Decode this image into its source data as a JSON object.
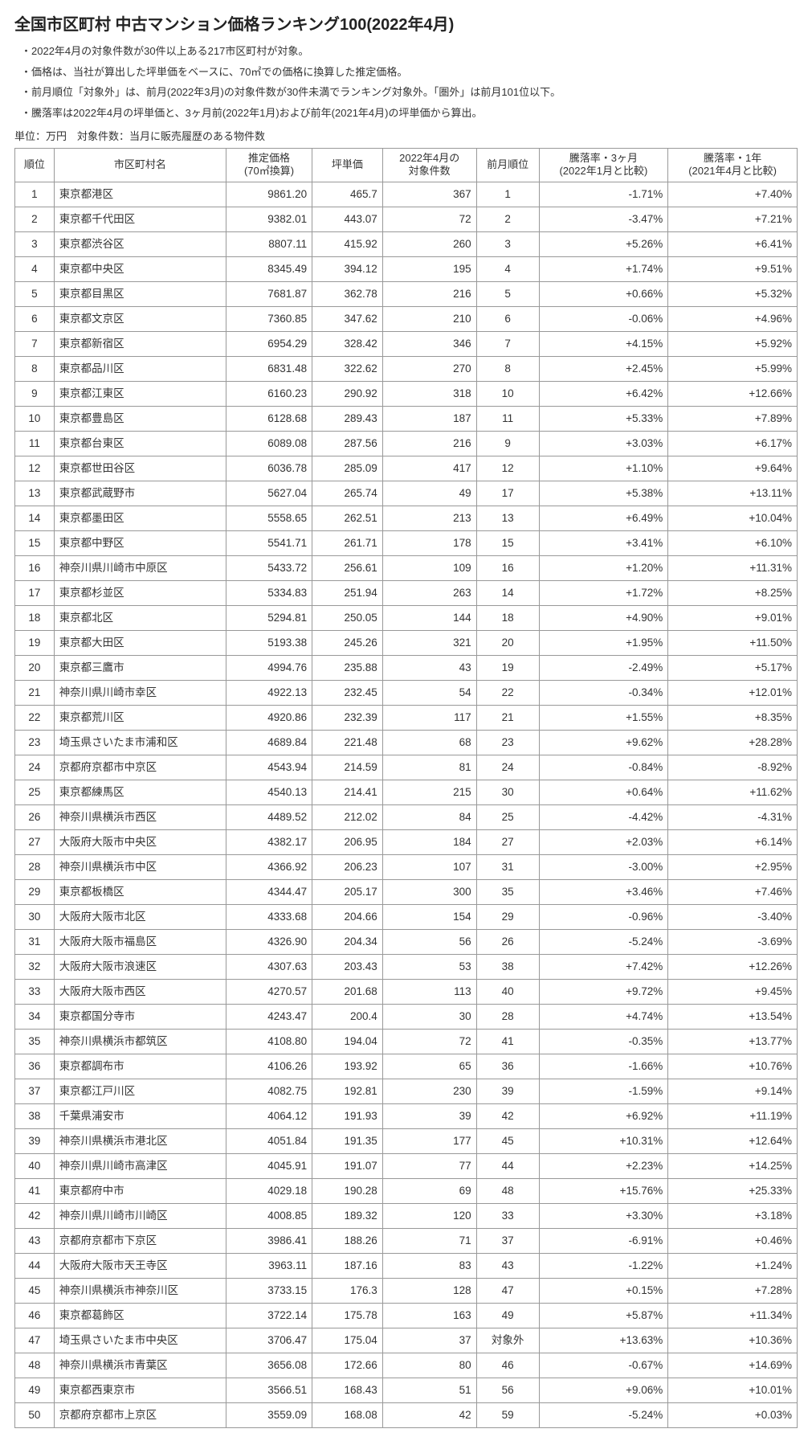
{
  "title": "全国市区町村 中古マンション価格ランキング100(2022年4月)",
  "notes": [
    "2022年4月の対象件数が30件以上ある217市区町村が対象。",
    "価格は、当社が算出した坪単価をベースに、70㎡での価格に換算した推定価格。",
    "前月順位「対象外」は、前月(2022年3月)の対象件数が30件未満でランキング対象外。「圏外」は前月101位以下。",
    "騰落率は2022年4月の坪単価と、3ヶ月前(2022年1月)および前年(2021年4月)の坪単価から算出。"
  ],
  "unit_line": "単位：万円　対象件数：当月に販売履歴のある物件数",
  "columns": [
    "順位",
    "市区町村名",
    "推定価格\n(70㎡換算)",
    "坪単価",
    "2022年4月の\n対象件数",
    "前月順位",
    "騰落率・3ヶ月\n(2022年1月と比較)",
    "騰落率・1年\n(2021年4月と比較)"
  ],
  "rows": [
    {
      "rank": 1,
      "name": "東京都港区",
      "price": "9861.20",
      "tsubo": "465.7",
      "count": 367,
      "prev": "1",
      "ch3": "-1.71%",
      "ch12": "+7.40%"
    },
    {
      "rank": 2,
      "name": "東京都千代田区",
      "price": "9382.01",
      "tsubo": "443.07",
      "count": 72,
      "prev": "2",
      "ch3": "-3.47%",
      "ch12": "+7.21%"
    },
    {
      "rank": 3,
      "name": "東京都渋谷区",
      "price": "8807.11",
      "tsubo": "415.92",
      "count": 260,
      "prev": "3",
      "ch3": "+5.26%",
      "ch12": "+6.41%"
    },
    {
      "rank": 4,
      "name": "東京都中央区",
      "price": "8345.49",
      "tsubo": "394.12",
      "count": 195,
      "prev": "4",
      "ch3": "+1.74%",
      "ch12": "+9.51%"
    },
    {
      "rank": 5,
      "name": "東京都目黒区",
      "price": "7681.87",
      "tsubo": "362.78",
      "count": 216,
      "prev": "5",
      "ch3": "+0.66%",
      "ch12": "+5.32%"
    },
    {
      "rank": 6,
      "name": "東京都文京区",
      "price": "7360.85",
      "tsubo": "347.62",
      "count": 210,
      "prev": "6",
      "ch3": "-0.06%",
      "ch12": "+4.96%"
    },
    {
      "rank": 7,
      "name": "東京都新宿区",
      "price": "6954.29",
      "tsubo": "328.42",
      "count": 346,
      "prev": "7",
      "ch3": "+4.15%",
      "ch12": "+5.92%"
    },
    {
      "rank": 8,
      "name": "東京都品川区",
      "price": "6831.48",
      "tsubo": "322.62",
      "count": 270,
      "prev": "8",
      "ch3": "+2.45%",
      "ch12": "+5.99%"
    },
    {
      "rank": 9,
      "name": "東京都江東区",
      "price": "6160.23",
      "tsubo": "290.92",
      "count": 318,
      "prev": "10",
      "ch3": "+6.42%",
      "ch12": "+12.66%"
    },
    {
      "rank": 10,
      "name": "東京都豊島区",
      "price": "6128.68",
      "tsubo": "289.43",
      "count": 187,
      "prev": "11",
      "ch3": "+5.33%",
      "ch12": "+7.89%"
    },
    {
      "rank": 11,
      "name": "東京都台東区",
      "price": "6089.08",
      "tsubo": "287.56",
      "count": 216,
      "prev": "9",
      "ch3": "+3.03%",
      "ch12": "+6.17%"
    },
    {
      "rank": 12,
      "name": "東京都世田谷区",
      "price": "6036.78",
      "tsubo": "285.09",
      "count": 417,
      "prev": "12",
      "ch3": "+1.10%",
      "ch12": "+9.64%"
    },
    {
      "rank": 13,
      "name": "東京都武蔵野市",
      "price": "5627.04",
      "tsubo": "265.74",
      "count": 49,
      "prev": "17",
      "ch3": "+5.38%",
      "ch12": "+13.11%"
    },
    {
      "rank": 14,
      "name": "東京都墨田区",
      "price": "5558.65",
      "tsubo": "262.51",
      "count": 213,
      "prev": "13",
      "ch3": "+6.49%",
      "ch12": "+10.04%"
    },
    {
      "rank": 15,
      "name": "東京都中野区",
      "price": "5541.71",
      "tsubo": "261.71",
      "count": 178,
      "prev": "15",
      "ch3": "+3.41%",
      "ch12": "+6.10%"
    },
    {
      "rank": 16,
      "name": "神奈川県川崎市中原区",
      "price": "5433.72",
      "tsubo": "256.61",
      "count": 109,
      "prev": "16",
      "ch3": "+1.20%",
      "ch12": "+11.31%"
    },
    {
      "rank": 17,
      "name": "東京都杉並区",
      "price": "5334.83",
      "tsubo": "251.94",
      "count": 263,
      "prev": "14",
      "ch3": "+1.72%",
      "ch12": "+8.25%"
    },
    {
      "rank": 18,
      "name": "東京都北区",
      "price": "5294.81",
      "tsubo": "250.05",
      "count": 144,
      "prev": "18",
      "ch3": "+4.90%",
      "ch12": "+9.01%"
    },
    {
      "rank": 19,
      "name": "東京都大田区",
      "price": "5193.38",
      "tsubo": "245.26",
      "count": 321,
      "prev": "20",
      "ch3": "+1.95%",
      "ch12": "+11.50%"
    },
    {
      "rank": 20,
      "name": "東京都三鷹市",
      "price": "4994.76",
      "tsubo": "235.88",
      "count": 43,
      "prev": "19",
      "ch3": "-2.49%",
      "ch12": "+5.17%"
    },
    {
      "rank": 21,
      "name": "神奈川県川崎市幸区",
      "price": "4922.13",
      "tsubo": "232.45",
      "count": 54,
      "prev": "22",
      "ch3": "-0.34%",
      "ch12": "+12.01%"
    },
    {
      "rank": 22,
      "name": "東京都荒川区",
      "price": "4920.86",
      "tsubo": "232.39",
      "count": 117,
      "prev": "21",
      "ch3": "+1.55%",
      "ch12": "+8.35%"
    },
    {
      "rank": 23,
      "name": "埼玉県さいたま市浦和区",
      "price": "4689.84",
      "tsubo": "221.48",
      "count": 68,
      "prev": "23",
      "ch3": "+9.62%",
      "ch12": "+28.28%"
    },
    {
      "rank": 24,
      "name": "京都府京都市中京区",
      "price": "4543.94",
      "tsubo": "214.59",
      "count": 81,
      "prev": "24",
      "ch3": "-0.84%",
      "ch12": "-8.92%"
    },
    {
      "rank": 25,
      "name": "東京都練馬区",
      "price": "4540.13",
      "tsubo": "214.41",
      "count": 215,
      "prev": "30",
      "ch3": "+0.64%",
      "ch12": "+11.62%"
    },
    {
      "rank": 26,
      "name": "神奈川県横浜市西区",
      "price": "4489.52",
      "tsubo": "212.02",
      "count": 84,
      "prev": "25",
      "ch3": "-4.42%",
      "ch12": "-4.31%"
    },
    {
      "rank": 27,
      "name": "大阪府大阪市中央区",
      "price": "4382.17",
      "tsubo": "206.95",
      "count": 184,
      "prev": "27",
      "ch3": "+2.03%",
      "ch12": "+6.14%"
    },
    {
      "rank": 28,
      "name": "神奈川県横浜市中区",
      "price": "4366.92",
      "tsubo": "206.23",
      "count": 107,
      "prev": "31",
      "ch3": "-3.00%",
      "ch12": "+2.95%"
    },
    {
      "rank": 29,
      "name": "東京都板橋区",
      "price": "4344.47",
      "tsubo": "205.17",
      "count": 300,
      "prev": "35",
      "ch3": "+3.46%",
      "ch12": "+7.46%"
    },
    {
      "rank": 30,
      "name": "大阪府大阪市北区",
      "price": "4333.68",
      "tsubo": "204.66",
      "count": 154,
      "prev": "29",
      "ch3": "-0.96%",
      "ch12": "-3.40%"
    },
    {
      "rank": 31,
      "name": "大阪府大阪市福島区",
      "price": "4326.90",
      "tsubo": "204.34",
      "count": 56,
      "prev": "26",
      "ch3": "-5.24%",
      "ch12": "-3.69%"
    },
    {
      "rank": 32,
      "name": "大阪府大阪市浪速区",
      "price": "4307.63",
      "tsubo": "203.43",
      "count": 53,
      "prev": "38",
      "ch3": "+7.42%",
      "ch12": "+12.26%"
    },
    {
      "rank": 33,
      "name": "大阪府大阪市西区",
      "price": "4270.57",
      "tsubo": "201.68",
      "count": 113,
      "prev": "40",
      "ch3": "+9.72%",
      "ch12": "+9.45%"
    },
    {
      "rank": 34,
      "name": "東京都国分寺市",
      "price": "4243.47",
      "tsubo": "200.4",
      "count": 30,
      "prev": "28",
      "ch3": "+4.74%",
      "ch12": "+13.54%"
    },
    {
      "rank": 35,
      "name": "神奈川県横浜市都筑区",
      "price": "4108.80",
      "tsubo": "194.04",
      "count": 72,
      "prev": "41",
      "ch3": "-0.35%",
      "ch12": "+13.77%"
    },
    {
      "rank": 36,
      "name": "東京都調布市",
      "price": "4106.26",
      "tsubo": "193.92",
      "count": 65,
      "prev": "36",
      "ch3": "-1.66%",
      "ch12": "+10.76%"
    },
    {
      "rank": 37,
      "name": "東京都江戸川区",
      "price": "4082.75",
      "tsubo": "192.81",
      "count": 230,
      "prev": "39",
      "ch3": "-1.59%",
      "ch12": "+9.14%"
    },
    {
      "rank": 38,
      "name": "千葉県浦安市",
      "price": "4064.12",
      "tsubo": "191.93",
      "count": 39,
      "prev": "42",
      "ch3": "+6.92%",
      "ch12": "+11.19%"
    },
    {
      "rank": 39,
      "name": "神奈川県横浜市港北区",
      "price": "4051.84",
      "tsubo": "191.35",
      "count": 177,
      "prev": "45",
      "ch3": "+10.31%",
      "ch12": "+12.64%"
    },
    {
      "rank": 40,
      "name": "神奈川県川崎市高津区",
      "price": "4045.91",
      "tsubo": "191.07",
      "count": 77,
      "prev": "44",
      "ch3": "+2.23%",
      "ch12": "+14.25%"
    },
    {
      "rank": 41,
      "name": "東京都府中市",
      "price": "4029.18",
      "tsubo": "190.28",
      "count": 69,
      "prev": "48",
      "ch3": "+15.76%",
      "ch12": "+25.33%"
    },
    {
      "rank": 42,
      "name": "神奈川県川崎市川崎区",
      "price": "4008.85",
      "tsubo": "189.32",
      "count": 120,
      "prev": "33",
      "ch3": "+3.30%",
      "ch12": "+3.18%"
    },
    {
      "rank": 43,
      "name": "京都府京都市下京区",
      "price": "3986.41",
      "tsubo": "188.26",
      "count": 71,
      "prev": "37",
      "ch3": "-6.91%",
      "ch12": "+0.46%"
    },
    {
      "rank": 44,
      "name": "大阪府大阪市天王寺区",
      "price": "3963.11",
      "tsubo": "187.16",
      "count": 83,
      "prev": "43",
      "ch3": "-1.22%",
      "ch12": "+1.24%"
    },
    {
      "rank": 45,
      "name": "神奈川県横浜市神奈川区",
      "price": "3733.15",
      "tsubo": "176.3",
      "count": 128,
      "prev": "47",
      "ch3": "+0.15%",
      "ch12": "+7.28%"
    },
    {
      "rank": 46,
      "name": "東京都葛飾区",
      "price": "3722.14",
      "tsubo": "175.78",
      "count": 163,
      "prev": "49",
      "ch3": "+5.87%",
      "ch12": "+11.34%"
    },
    {
      "rank": 47,
      "name": "埼玉県さいたま市中央区",
      "price": "3706.47",
      "tsubo": "175.04",
      "count": 37,
      "prev": "対象外",
      "ch3": "+13.63%",
      "ch12": "+10.36%"
    },
    {
      "rank": 48,
      "name": "神奈川県横浜市青葉区",
      "price": "3656.08",
      "tsubo": "172.66",
      "count": 80,
      "prev": "46",
      "ch3": "-0.67%",
      "ch12": "+14.69%"
    },
    {
      "rank": 49,
      "name": "東京都西東京市",
      "price": "3566.51",
      "tsubo": "168.43",
      "count": 51,
      "prev": "56",
      "ch3": "+9.06%",
      "ch12": "+10.01%"
    },
    {
      "rank": 50,
      "name": "京都府京都市上京区",
      "price": "3559.09",
      "tsubo": "168.08",
      "count": 42,
      "prev": "59",
      "ch3": "-5.24%",
      "ch12": "+0.03%"
    }
  ]
}
